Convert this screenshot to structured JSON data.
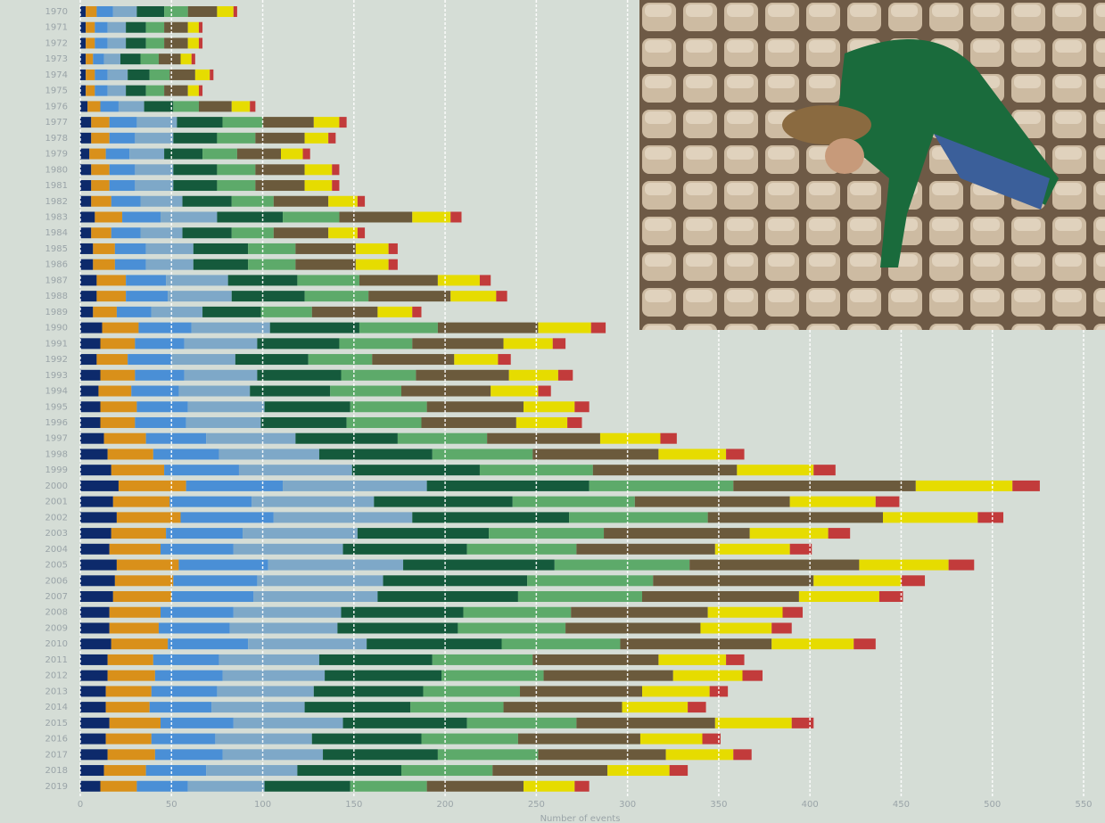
{
  "chart_data": {
    "type": "stacked-barh",
    "x_label": "Number of events",
    "categories": [
      "1970",
      "1971",
      "1972",
      "1973",
      "1974",
      "1975",
      "1976",
      "1977",
      "1978",
      "1979",
      "1980",
      "1981",
      "1982",
      "1983",
      "1984",
      "1985",
      "1986",
      "1987",
      "1988",
      "1989",
      "1990",
      "1991",
      "1992",
      "1993",
      "1994",
      "1995",
      "1996",
      "1997",
      "1998",
      "1999",
      "2000",
      "2001",
      "2002",
      "2003",
      "2004",
      "2005",
      "2006",
      "2007",
      "2008",
      "2009",
      "2010",
      "2011",
      "2012",
      "2013",
      "2014",
      "2015",
      "2016",
      "2017",
      "2018",
      "2019"
    ],
    "series": [
      {
        "color": "#0d2a6b",
        "values": [
          3,
          3,
          3,
          3,
          3,
          3,
          4,
          6,
          6,
          5,
          6,
          6,
          6,
          8,
          6,
          7,
          7,
          9,
          9,
          7,
          12,
          11,
          9,
          11,
          10,
          11,
          11,
          13,
          15,
          17,
          21,
          18,
          20,
          17,
          16,
          20,
          19,
          18,
          16,
          16,
          17,
          15,
          15,
          14,
          14,
          16,
          14,
          15,
          13,
          11
        ]
      },
      {
        "color": "#d9901a",
        "values": [
          6,
          5,
          5,
          4,
          5,
          5,
          7,
          10,
          10,
          9,
          10,
          10,
          11,
          15,
          11,
          12,
          12,
          16,
          16,
          13,
          20,
          19,
          17,
          19,
          18,
          20,
          19,
          23,
          25,
          29,
          37,
          31,
          35,
          30,
          28,
          34,
          32,
          32,
          28,
          27,
          31,
          25,
          26,
          25,
          24,
          28,
          25,
          26,
          23,
          20
        ]
      },
      {
        "color": "#4a8fd6",
        "values": [
          9,
          7,
          7,
          6,
          7,
          7,
          10,
          15,
          14,
          13,
          14,
          14,
          16,
          21,
          16,
          17,
          17,
          22,
          23,
          19,
          29,
          27,
          24,
          27,
          26,
          28,
          28,
          33,
          36,
          41,
          53,
          45,
          51,
          42,
          40,
          49,
          46,
          45,
          40,
          39,
          44,
          36,
          37,
          36,
          34,
          40,
          35,
          37,
          33,
          28
        ]
      },
      {
        "color": "#7ea8c8",
        "values": [
          13,
          10,
          10,
          9,
          11,
          10,
          14,
          22,
          21,
          19,
          21,
          21,
          23,
          31,
          23,
          26,
          26,
          34,
          35,
          28,
          43,
          40,
          35,
          40,
          39,
          42,
          41,
          49,
          55,
          62,
          79,
          67,
          76,
          63,
          60,
          74,
          69,
          68,
          59,
          59,
          65,
          55,
          56,
          53,
          51,
          60,
          53,
          55,
          50,
          42
        ]
      },
      {
        "color": "#155a3c",
        "values": [
          15,
          11,
          11,
          11,
          12,
          11,
          16,
          25,
          24,
          21,
          24,
          24,
          27,
          36,
          27,
          30,
          30,
          38,
          40,
          32,
          49,
          45,
          40,
          46,
          44,
          47,
          47,
          56,
          62,
          70,
          89,
          76,
          86,
          72,
          68,
          83,
          79,
          77,
          67,
          66,
          74,
          62,
          64,
          60,
          58,
          68,
          60,
          63,
          57,
          47
        ]
      },
      {
        "color": "#5daa6a",
        "values": [
          13,
          10,
          10,
          10,
          11,
          10,
          14,
          22,
          21,
          19,
          21,
          21,
          23,
          31,
          23,
          26,
          26,
          34,
          35,
          28,
          43,
          40,
          35,
          41,
          39,
          42,
          41,
          49,
          55,
          62,
          79,
          67,
          76,
          63,
          60,
          74,
          69,
          68,
          59,
          59,
          65,
          55,
          56,
          53,
          51,
          60,
          53,
          55,
          50,
          42
        ]
      },
      {
        "color": "#6b5a3c",
        "values": [
          16,
          13,
          13,
          12,
          14,
          13,
          18,
          28,
          27,
          24,
          27,
          27,
          30,
          40,
          30,
          33,
          33,
          43,
          45,
          36,
          55,
          50,
          45,
          51,
          49,
          53,
          52,
          62,
          69,
          79,
          100,
          85,
          96,
          80,
          76,
          93,
          88,
          86,
          75,
          74,
          83,
          69,
          71,
          67,
          65,
          76,
          67,
          70,
          63,
          53
        ]
      },
      {
        "color": "#e6dc00",
        "values": [
          9,
          6,
          6,
          6,
          8,
          6,
          10,
          14,
          13,
          12,
          15,
          15,
          16,
          21,
          16,
          18,
          18,
          23,
          25,
          19,
          29,
          27,
          24,
          27,
          26,
          28,
          28,
          33,
          37,
          42,
          53,
          47,
          52,
          43,
          41,
          49,
          48,
          44,
          41,
          39,
          45,
          37,
          38,
          37,
          36,
          42,
          34,
          37,
          34,
          28
        ]
      },
      {
        "color": "#c23b3b",
        "values": [
          2,
          2,
          2,
          2,
          2,
          2,
          3,
          4,
          4,
          4,
          4,
          4,
          4,
          6,
          4,
          5,
          5,
          6,
          6,
          5,
          8,
          7,
          7,
          8,
          7,
          8,
          8,
          9,
          10,
          12,
          15,
          13,
          14,
          12,
          12,
          14,
          13,
          13,
          11,
          11,
          12,
          10,
          11,
          10,
          10,
          12,
          10,
          10,
          10,
          8
        ]
      }
    ],
    "xlim": [
      0,
      550
    ],
    "xticks": [
      0,
      50,
      100,
      150,
      200,
      250,
      300,
      350,
      400,
      450,
      500,
      550
    ],
    "grid": true
  }
}
